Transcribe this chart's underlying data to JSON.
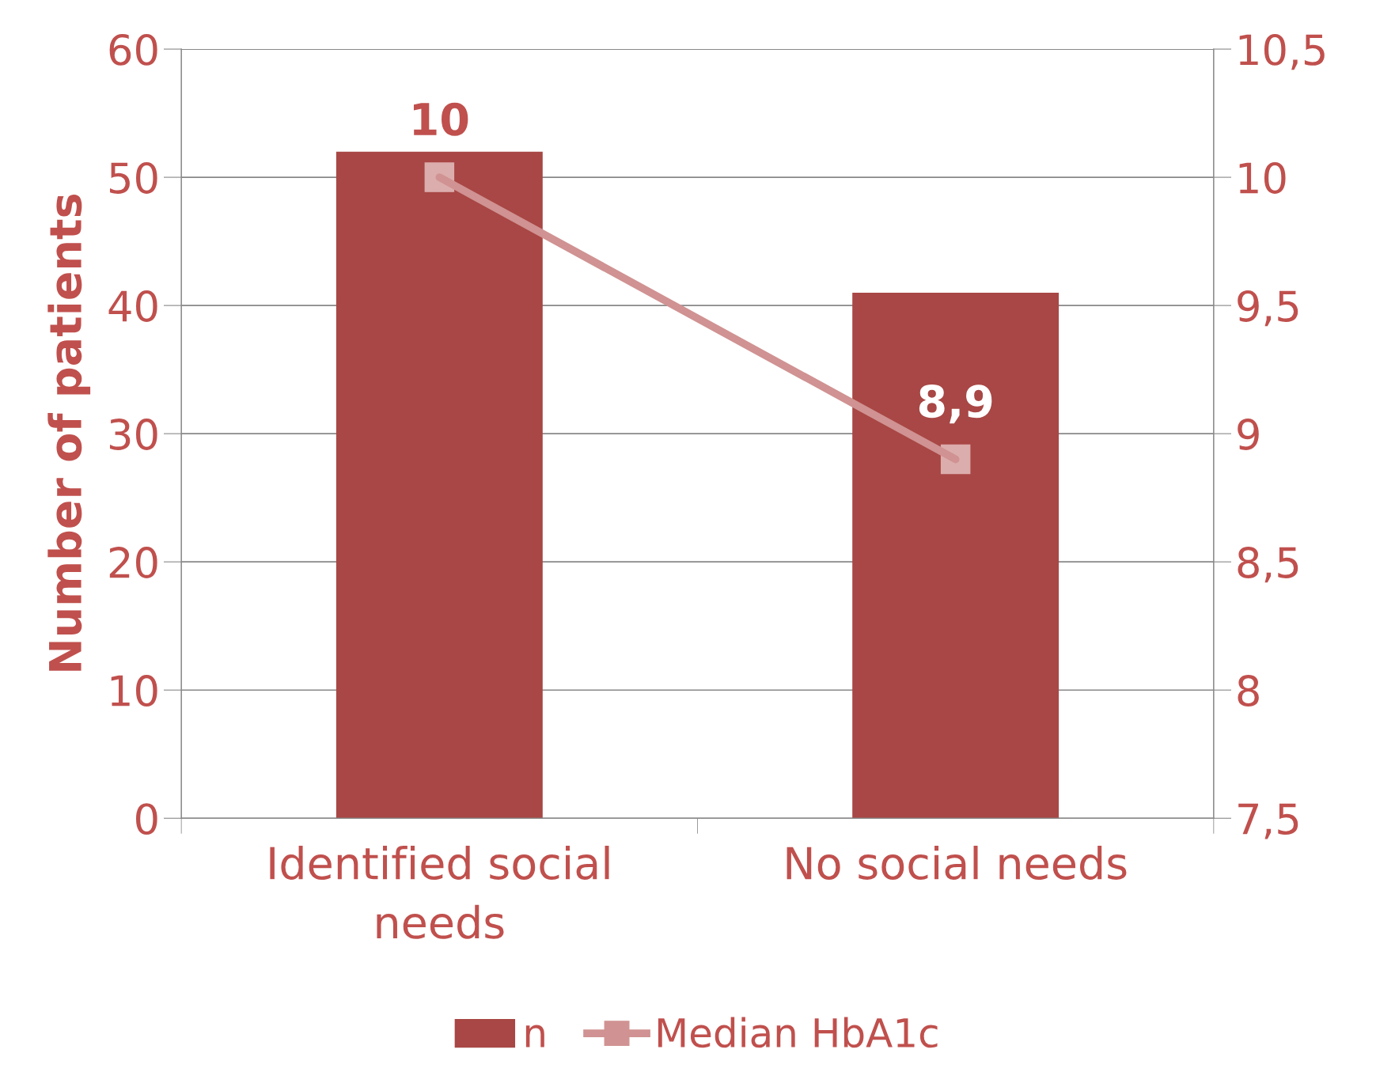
{
  "chart_data": {
    "type": "bar",
    "ylabel": "Number of patients",
    "categories": [
      "Identified social needs",
      "No social needs"
    ],
    "series": [
      {
        "name": "n",
        "color": "#a84745",
        "values": [
          52,
          41
        ]
      },
      {
        "name": "Median HbA1c",
        "type": "line",
        "axis": "y2",
        "color": "#d09292",
        "marker": "square",
        "values": [
          10,
          8.9
        ],
        "value_labels": [
          "10",
          "8,9"
        ]
      }
    ],
    "ylim": [
      0,
      60
    ],
    "yticks": [
      0,
      10,
      20,
      30,
      40,
      50,
      60
    ],
    "y2lim": [
      7.5,
      10.5
    ],
    "y2ticks": [
      {
        "value": 7.5,
        "label": "7,5"
      },
      8,
      {
        "value": 8.5,
        "label": "8,5"
      },
      9,
      {
        "value": 9.5,
        "label": "9,5"
      },
      10,
      {
        "value": 10.5,
        "label": "10,5"
      }
    ],
    "grid": "y",
    "legend": "bottom"
  }
}
